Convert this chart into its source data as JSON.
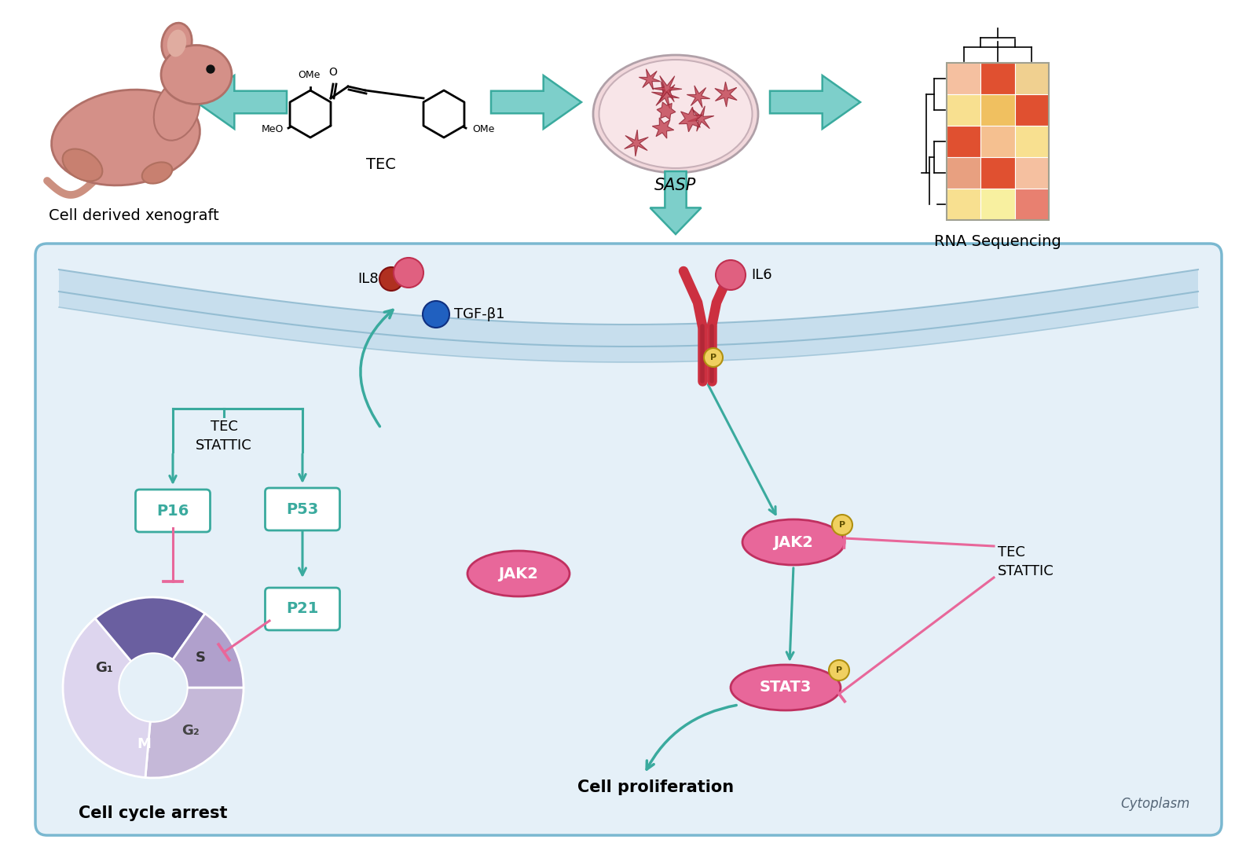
{
  "bg_color": "#ffffff",
  "arrow_color": "#7dcfca",
  "arrow_edge": "#3aaa9e",
  "teal": "#3aaa9e",
  "pink": "#e8679a",
  "dark_teal": "#1e8a7a",
  "cell_bg": "#e8f2f8",
  "membrane_color": "#b8d8e8",
  "membrane_edge": "#88b8cc",
  "p16_label": "P16",
  "p53_label": "P53",
  "p21_label": "P21",
  "jak2_label": "JAK2",
  "stat3_label": "STAT3",
  "p_label": "P",
  "tec_stattic_label": "TEC\nSTATTIC",
  "il8_label": "IL8",
  "il6_label": "IL6",
  "tgfb1_label": "TGF-β1",
  "cell_cycle_arrest": "Cell cycle arrest",
  "cell_proliferation": "Cell proliferation",
  "cytoplasm": "Cytoplasm",
  "xenograft_label": "Cell derived xenograft",
  "tec_label": "TEC",
  "rna_label": "RNA Sequencing",
  "sasp_label": "SASP",
  "red_dot": "#c0392b",
  "pink_dot": "#e06878",
  "blue_dot": "#2060c0",
  "jak2_fill": "#e8679a",
  "stat3_fill": "#e8679a",
  "p_circle": "#f0d060",
  "receptor_color": "#c0392b",
  "cycle_g1": "#e0d8f0",
  "cycle_s": "#c5b8d8",
  "cycle_g2": "#b0a0cc",
  "cycle_m": "#6a5fa0",
  "hm_colors": [
    [
      "#f5c0a0",
      "#e05030",
      "#f0d090"
    ],
    [
      "#f8e090",
      "#f0c060",
      "#e05030"
    ],
    [
      "#e05030",
      "#f5c090",
      "#f8e090"
    ],
    [
      "#e8a080",
      "#e05030",
      "#f5c0a0"
    ],
    [
      "#f8e090",
      "#f8f0a0",
      "#e88070"
    ]
  ]
}
